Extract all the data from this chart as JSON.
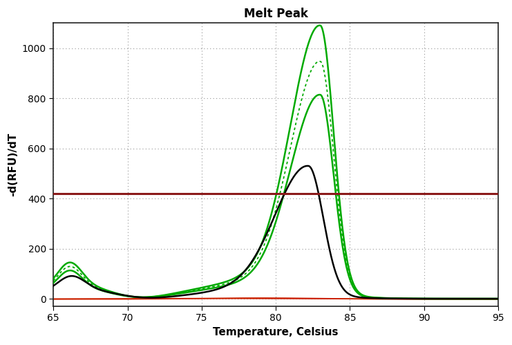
{
  "title": "Melt Peak",
  "xlabel": "Temperature, Celsius",
  "ylabel": "-d(RFU)/dT",
  "xlim": [
    65,
    95
  ],
  "ylim": [
    -30,
    1100
  ],
  "yticks": [
    0,
    200,
    400,
    600,
    800,
    1000
  ],
  "xticks": [
    65,
    70,
    75,
    80,
    85,
    90,
    95
  ],
  "threshold_y": 420,
  "threshold_color": "#8B1A1A",
  "background_color": "#ffffff",
  "grid_color": "#888888",
  "green_solid_color": "#00AA00",
  "green_dot_color": "#00AA00",
  "black_line_color": "#000000",
  "red_line_color": "#CC2200"
}
